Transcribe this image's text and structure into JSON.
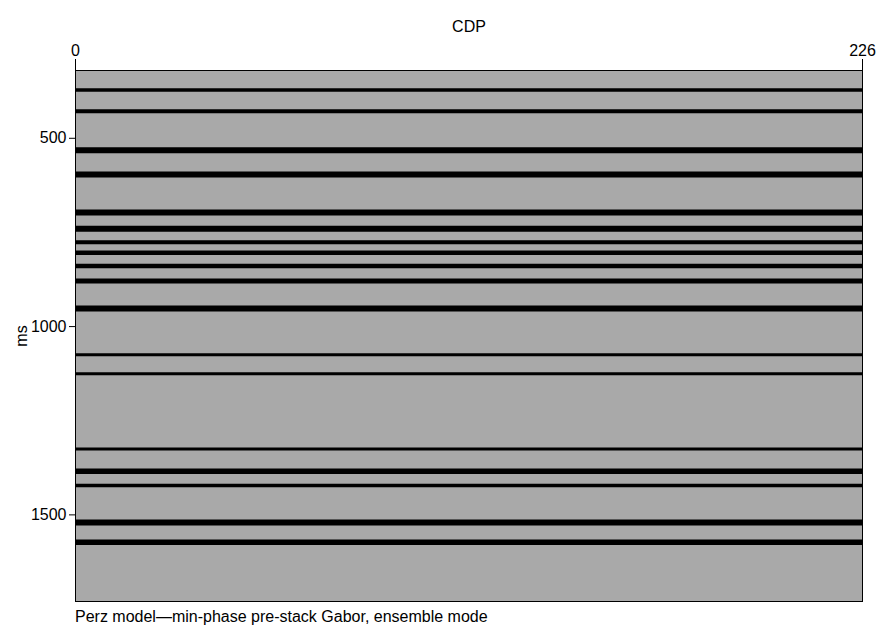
{
  "chart_data": {
    "type": "seismic_section",
    "caption": "Perz model—min-phase pre-stack Gabor, ensemble mode",
    "xlabel": "CDP",
    "ylabel": "ms",
    "xlim": [
      0,
      226
    ],
    "xticks": [
      0,
      226
    ],
    "ylim": [
      320,
      1730
    ],
    "yticks": [
      500,
      1000,
      1500
    ],
    "color": "#000000",
    "events": [
      {
        "time": 372,
        "amplitude": 0.5
      },
      {
        "time": 428,
        "amplitude": 0.6
      },
      {
        "time": 532,
        "amplitude": 1.0
      },
      {
        "time": 596,
        "amplitude": 1.0
      },
      {
        "time": 697,
        "amplitude": 1.0
      },
      {
        "time": 740,
        "amplitude": 1.0
      },
      {
        "time": 776,
        "amplitude": 0.6
      },
      {
        "time": 804,
        "amplitude": 0.7
      },
      {
        "time": 839,
        "amplitude": 0.7
      },
      {
        "time": 879,
        "amplitude": 0.8
      },
      {
        "time": 952,
        "amplitude": 1.0
      },
      {
        "time": 1075,
        "amplitude": 0.4
      },
      {
        "time": 1125,
        "amplitude": 0.4
      },
      {
        "time": 1325,
        "amplitude": 0.4
      },
      {
        "time": 1384,
        "amplitude": 0.9
      },
      {
        "time": 1422,
        "amplitude": 0.5
      },
      {
        "time": 1520,
        "amplitude": 1.0
      },
      {
        "time": 1573,
        "amplitude": 0.9
      }
    ]
  }
}
